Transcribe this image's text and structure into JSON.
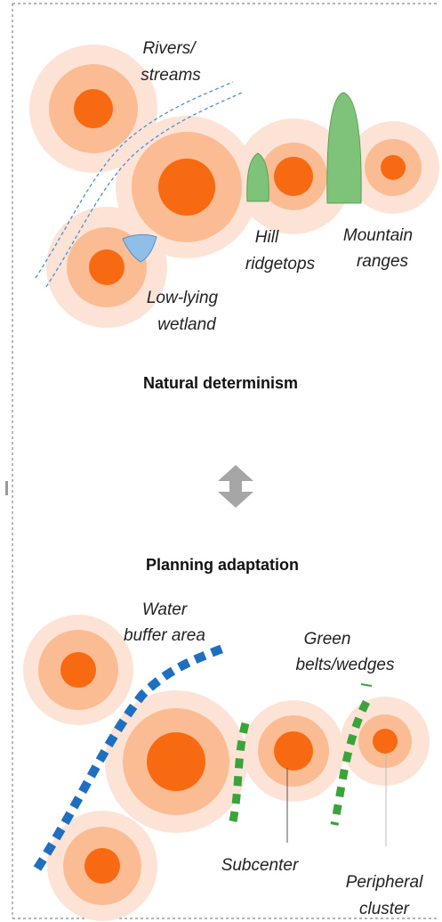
{
  "top": {
    "rivers": {
      "lines": [
        "Rivers/",
        "streams"
      ]
    },
    "hill": {
      "lines": [
        "Hill",
        "ridgetops"
      ]
    },
    "mountain": {
      "lines": [
        "Mountain",
        "ranges"
      ]
    },
    "wetland": {
      "lines": [
        "Low-lying",
        "wetland"
      ]
    },
    "title": "Natural determinism"
  },
  "bottom": {
    "title": "Planning adaptation",
    "water": {
      "lines": [
        "Water",
        "buffer area"
      ]
    },
    "green": {
      "lines": [
        "Green",
        "belts/wedges"
      ]
    },
    "subcenter": {
      "lines": [
        "Subcenter"
      ]
    },
    "peripheral": {
      "lines": [
        "Peripheral",
        "cluster"
      ]
    }
  }
}
